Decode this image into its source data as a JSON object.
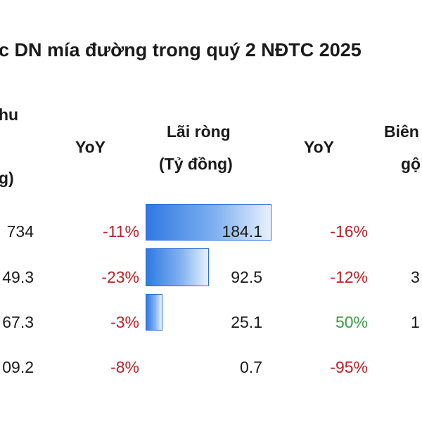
{
  "title": "c DN mía đường trong quý 2 NĐTC 2025",
  "headers": {
    "revenue_line1": "hu",
    "revenue_line3": "g)",
    "yoy1": "YoY",
    "profit_line1": "Lãi ròng",
    "profit_line2": "(Tỷ đồng)",
    "yoy2": "YoY",
    "margin_line1": "Biên",
    "margin_line2": "gộ"
  },
  "rows": [
    {
      "revenue": "734",
      "rev_yoy": "-11%",
      "profit": "184.1",
      "profit_value": 184.1,
      "profit_yoy": "-16%",
      "margin": ""
    },
    {
      "revenue": "49.3",
      "rev_yoy": "-23%",
      "profit": "92.5",
      "profit_value": 92.5,
      "profit_yoy": "-12%",
      "margin": "3"
    },
    {
      "revenue": "67.3",
      "rev_yoy": "-3%",
      "profit": "25.1",
      "profit_value": 25.1,
      "profit_yoy": "50%",
      "margin": "1"
    },
    {
      "revenue": "09.2",
      "rev_yoy": "-8%",
      "profit": "0.7",
      "profit_value": 0.7,
      "profit_yoy": "-95%",
      "margin": ""
    }
  ],
  "colors": {
    "negative": "#b3262c",
    "positive": "#3e9a46",
    "bar": "#2f79e3"
  }
}
